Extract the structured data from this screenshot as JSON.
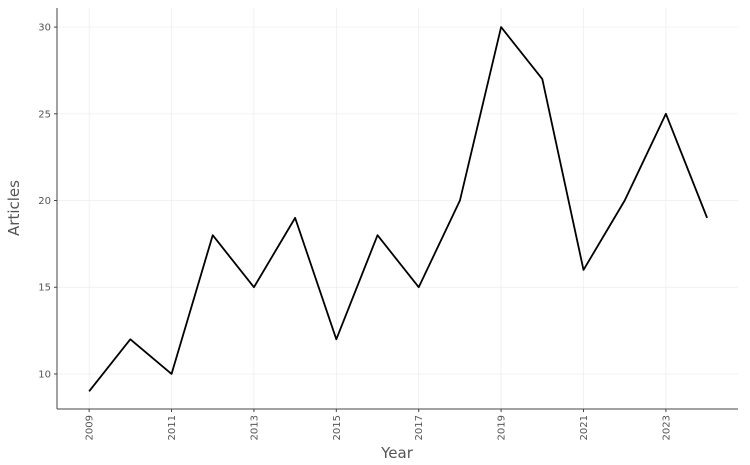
{
  "chart_data": {
    "type": "line",
    "x_label": "Year",
    "y_label": "Articles",
    "x": [
      2009,
      2010,
      2011,
      2012,
      2013,
      2014,
      2015,
      2016,
      2017,
      2018,
      2019,
      2020,
      2021,
      2022,
      2023,
      2024
    ],
    "series": [
      {
        "color": "#000000",
        "values": [
          9,
          12,
          10,
          18,
          15,
          19,
          12,
          18,
          15,
          20,
          30,
          27,
          16,
          20,
          25,
          19
        ]
      }
    ],
    "xlim": [
      2008.22,
      2024.75
    ],
    "xticks": [
      2009,
      2011,
      2013,
      2015,
      2017,
      2019,
      2021,
      2023
    ],
    "ylim": [
      7.98,
      31.1
    ],
    "yticks": [
      10,
      15,
      20,
      25,
      30
    ],
    "grid": true
  }
}
